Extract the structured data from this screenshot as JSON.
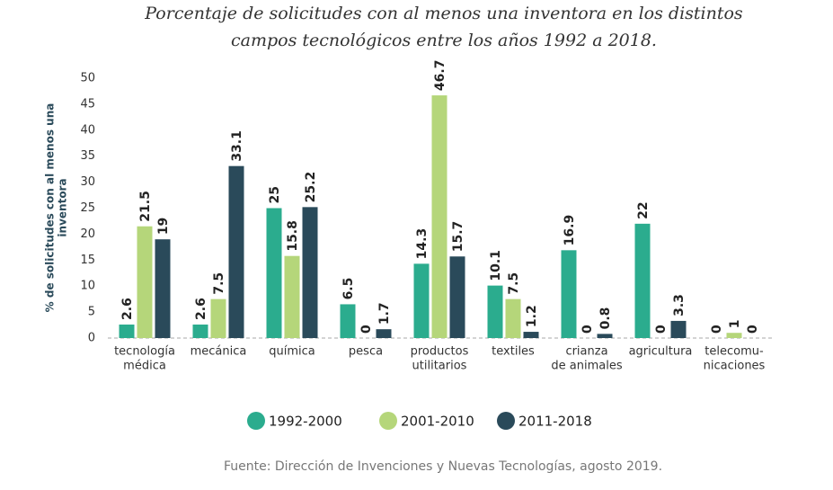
{
  "chart_data": {
    "type": "bar",
    "title": [
      "Porcentaje de solicitudes con al menos una inventora en los distintos",
      "campos tecnológicos entre los años 1992 a 2018."
    ],
    "y_label": [
      "% de solicitudes con al menos una",
      "inventora"
    ],
    "categories": [
      [
        "tecnología",
        "médica"
      ],
      [
        "mecánica"
      ],
      [
        "química"
      ],
      [
        "pesca"
      ],
      [
        "productos",
        "utilitarios"
      ],
      [
        "textiles"
      ],
      [
        "crianza",
        "de animales"
      ],
      [
        "agricultura"
      ],
      [
        "telecomu-",
        "nicaciones"
      ]
    ],
    "series": [
      {
        "name": "1992-2000",
        "color": "#2bac8e",
        "values": [
          2.6,
          2.6,
          25,
          6.5,
          14.3,
          10.1,
          16.9,
          22,
          0
        ]
      },
      {
        "name": "2001-2010",
        "color": "#b5d67a",
        "values": [
          21.5,
          7.5,
          15.8,
          0,
          46.7,
          7.5,
          0,
          0,
          1
        ]
      },
      {
        "name": "2011-2018",
        "color": "#2a4a5a",
        "values": [
          19,
          33.1,
          25.2,
          1.7,
          15.7,
          1.2,
          0.8,
          3.3,
          0
        ]
      }
    ],
    "ylim": [
      0,
      50
    ],
    "yticks": [
      0,
      5,
      10,
      15,
      20,
      25,
      30,
      35,
      40,
      45,
      50
    ],
    "grid": false,
    "source": "Fuente: Dirección de Invenciones y Nuevas Tecnologías, agosto 2019."
  }
}
